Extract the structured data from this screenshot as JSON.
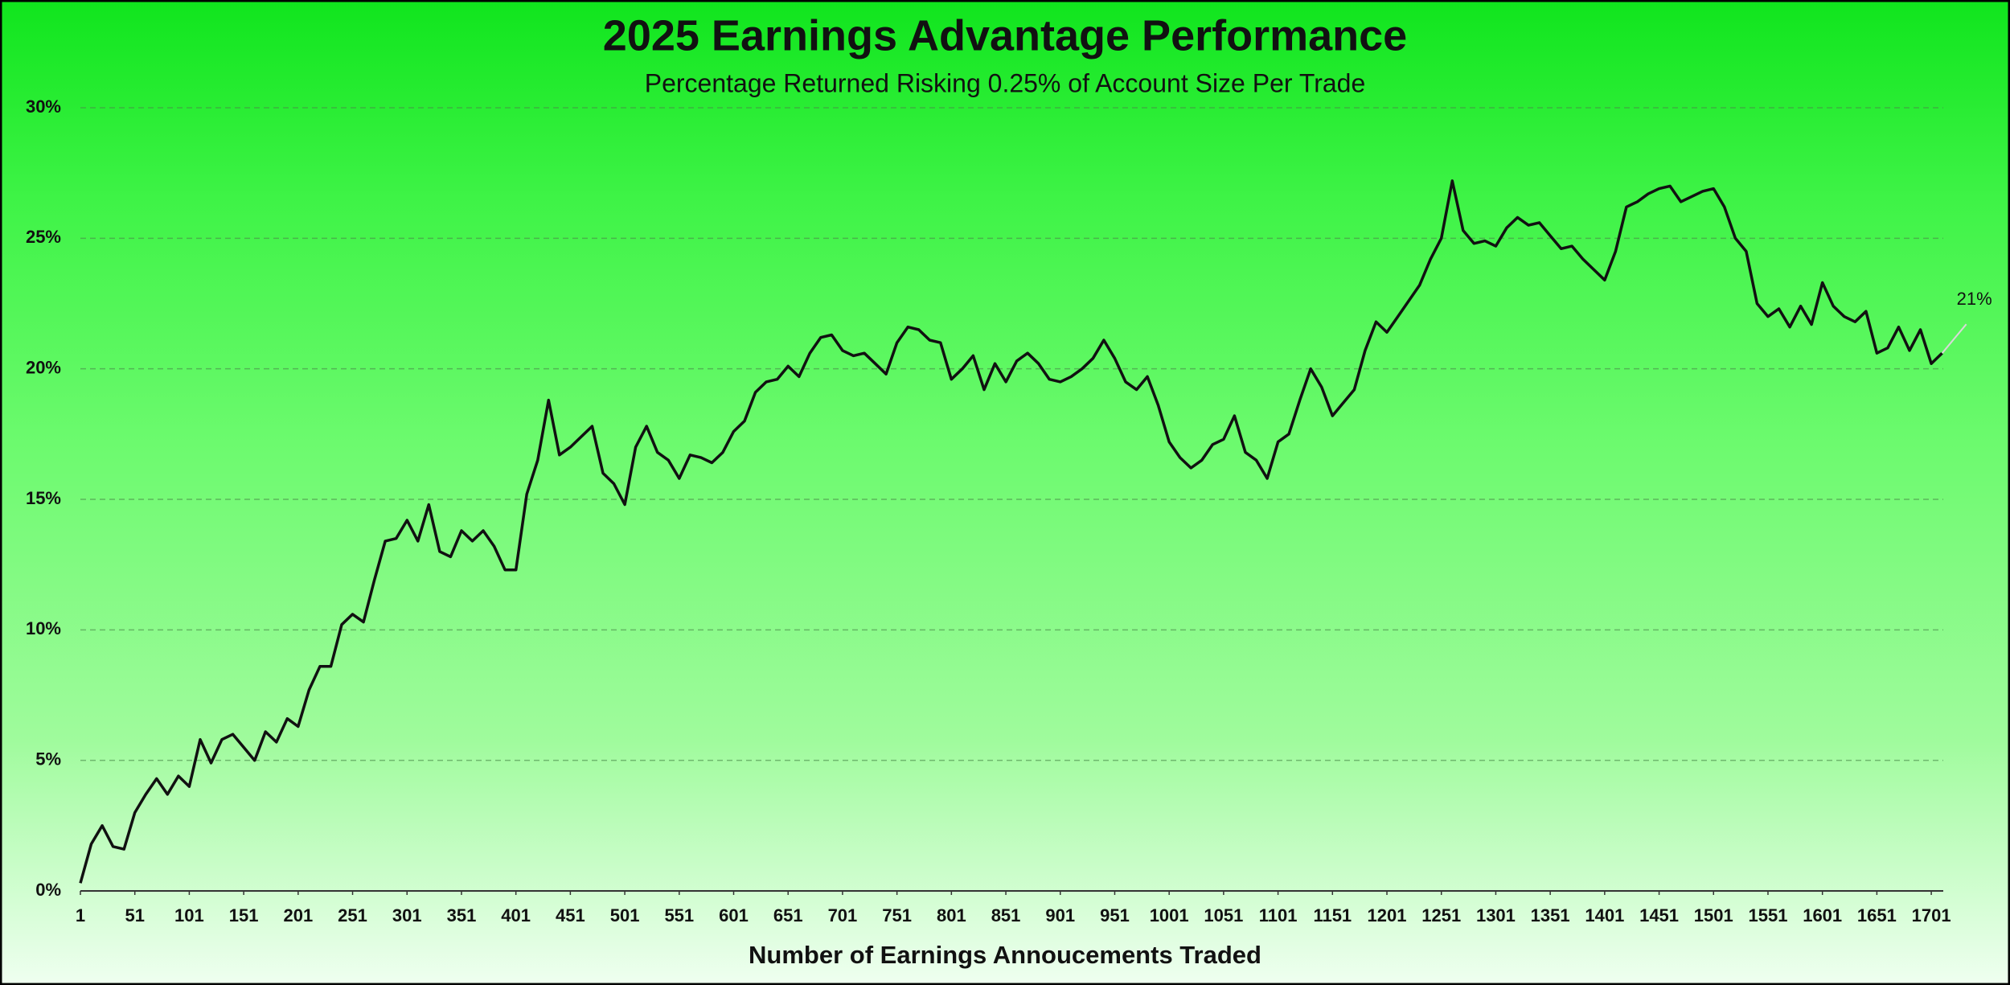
{
  "chart_data": {
    "type": "line",
    "title": "2025 Earnings Advantage Performance",
    "subtitle": "Percentage Returned Risking 0.25% of Account Size Per Trade",
    "x_label": "Number of Earnings Annoucements Traded",
    "color": "#111111",
    "grid": true,
    "xlim": [
      1,
      1712
    ],
    "xticks": [
      1,
      51,
      101,
      151,
      201,
      251,
      301,
      351,
      401,
      451,
      501,
      551,
      601,
      651,
      701,
      751,
      801,
      851,
      901,
      951,
      1001,
      1051,
      1101,
      1151,
      1201,
      1251,
      1301,
      1351,
      1401,
      1451,
      1501,
      1551,
      1601,
      1651,
      1701
    ],
    "ylim": [
      0,
      30
    ],
    "yticks": [
      {
        "value": 0,
        "label": "0%"
      },
      {
        "value": 5,
        "label": "5%"
      },
      {
        "value": 10,
        "label": "10%"
      },
      {
        "value": 15,
        "label": "15%"
      },
      {
        "value": 20,
        "label": "20%"
      },
      {
        "value": 25,
        "label": "25%"
      },
      {
        "value": 30,
        "label": "30%"
      }
    ],
    "x": [
      1,
      11,
      21,
      31,
      41,
      51,
      61,
      71,
      81,
      91,
      101,
      111,
      121,
      131,
      141,
      151,
      161,
      171,
      181,
      191,
      201,
      211,
      221,
      231,
      241,
      251,
      261,
      271,
      281,
      291,
      301,
      311,
      321,
      331,
      341,
      351,
      361,
      371,
      381,
      391,
      401,
      411,
      421,
      431,
      441,
      451,
      461,
      471,
      481,
      491,
      501,
      511,
      521,
      531,
      541,
      551,
      561,
      571,
      581,
      591,
      601,
      611,
      621,
      631,
      641,
      651,
      661,
      671,
      681,
      691,
      701,
      711,
      721,
      731,
      741,
      751,
      761,
      771,
      781,
      791,
      801,
      811,
      821,
      831,
      841,
      851,
      861,
      871,
      881,
      891,
      901,
      911,
      921,
      931,
      941,
      951,
      961,
      971,
      981,
      991,
      1001,
      1011,
      1021,
      1031,
      1041,
      1051,
      1061,
      1071,
      1081,
      1091,
      1101,
      1111,
      1121,
      1131,
      1141,
      1151,
      1161,
      1171,
      1181,
      1191,
      1201,
      1211,
      1221,
      1231,
      1241,
      1251,
      1261,
      1271,
      1281,
      1291,
      1301,
      1311,
      1321,
      1331,
      1341,
      1351,
      1361,
      1371,
      1381,
      1391,
      1401,
      1411,
      1421,
      1431,
      1441,
      1451,
      1461,
      1471,
      1481,
      1491,
      1501,
      1511,
      1521,
      1531,
      1541,
      1551,
      1561,
      1571,
      1581,
      1591,
      1601,
      1611,
      1621,
      1631,
      1641,
      1651,
      1661,
      1671,
      1681,
      1691,
      1701,
      1711
    ],
    "values": [
      0.3,
      1.8,
      2.5,
      1.7,
      1.6,
      3.0,
      3.7,
      4.3,
      3.7,
      4.4,
      4.0,
      5.8,
      4.9,
      5.8,
      6.0,
      5.5,
      5.0,
      6.1,
      5.7,
      6.6,
      6.3,
      7.7,
      8.6,
      8.6,
      10.2,
      10.6,
      10.3,
      11.9,
      13.4,
      13.5,
      14.2,
      13.4,
      14.8,
      13.0,
      12.8,
      13.8,
      13.4,
      13.8,
      13.2,
      12.3,
      12.3,
      15.2,
      16.5,
      18.8,
      16.7,
      17.0,
      17.4,
      17.8,
      16.0,
      15.6,
      14.8,
      17.0,
      17.8,
      16.8,
      16.5,
      15.8,
      16.7,
      16.6,
      16.4,
      16.8,
      17.6,
      18.0,
      19.1,
      19.5,
      19.6,
      20.1,
      19.7,
      20.6,
      21.2,
      21.3,
      20.7,
      20.5,
      20.6,
      20.2,
      19.8,
      21.0,
      21.6,
      21.5,
      21.1,
      21.0,
      19.6,
      20.0,
      20.5,
      19.2,
      20.2,
      19.5,
      20.3,
      20.6,
      20.2,
      19.6,
      19.5,
      19.7,
      20.0,
      20.4,
      21.1,
      20.4,
      19.5,
      19.2,
      19.7,
      18.6,
      17.2,
      16.6,
      16.2,
      16.5,
      17.1,
      17.3,
      18.2,
      16.8,
      16.5,
      15.8,
      17.2,
      17.5,
      18.8,
      20.0,
      19.3,
      18.2,
      18.7,
      19.2,
      20.7,
      21.8,
      21.4,
      22.0,
      22.6,
      23.2,
      24.2,
      25.0,
      27.2,
      25.3,
      24.8,
      24.9,
      24.7,
      25.4,
      25.8,
      25.5,
      25.6,
      25.1,
      24.6,
      24.7,
      24.2,
      23.8,
      23.4,
      24.5,
      26.2,
      26.4,
      26.7,
      26.9,
      27.0,
      26.4,
      26.6,
      26.8,
      26.9,
      26.2,
      25.0,
      24.5,
      22.5,
      22.0,
      22.3,
      21.6,
      22.4,
      21.7,
      23.3,
      22.4,
      22.0,
      21.8,
      22.2,
      20.6,
      20.8,
      21.6,
      20.7,
      21.5,
      20.2,
      20.6
    ],
    "value_labels": [
      null,
      null,
      null,
      null,
      null,
      null,
      null,
      null,
      null,
      null,
      null,
      null,
      null,
      null,
      null,
      null,
      null,
      null,
      null,
      null,
      null,
      null,
      null,
      null,
      null,
      null,
      null,
      null,
      null,
      null,
      null,
      null,
      null,
      null,
      null,
      null,
      null,
      null,
      null,
      null,
      null,
      null,
      null,
      null,
      null,
      null,
      null,
      null,
      null,
      null,
      null,
      null,
      null,
      null,
      null,
      null,
      null,
      null,
      null,
      null,
      null,
      null,
      null,
      null,
      null,
      null,
      null,
      null,
      null,
      null,
      null,
      null,
      null,
      null,
      null,
      null,
      null,
      null,
      null,
      null,
      null,
      null,
      null,
      null,
      null,
      null,
      null,
      null,
      null,
      null,
      null,
      null,
      null,
      null,
      null,
      null,
      null,
      null,
      null,
      null,
      null,
      null,
      null,
      null,
      null,
      null,
      null,
      null,
      null,
      null,
      null,
      null,
      null,
      null,
      null,
      null,
      null,
      null,
      null,
      null,
      null,
      null,
      null,
      null,
      null,
      null,
      null,
      null,
      null,
      null,
      null,
      null,
      null,
      null,
      null,
      null,
      null,
      null,
      null,
      null,
      null,
      null,
      null,
      null,
      null,
      null,
      null,
      null,
      null,
      null,
      null,
      null,
      null,
      null,
      null,
      null,
      null,
      null,
      null,
      null,
      null,
      null,
      null,
      null,
      null,
      null,
      null,
      null,
      null,
      null,
      null,
      "21%"
    ]
  }
}
